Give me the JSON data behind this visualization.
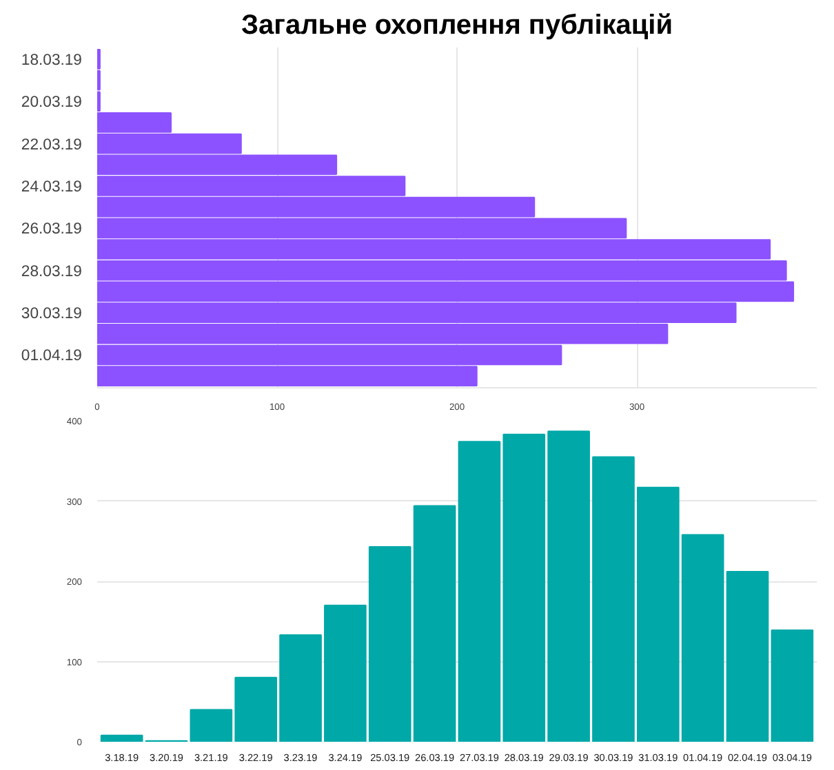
{
  "chart_data": [
    {
      "type": "bar",
      "title": "Загальне охоплення публікацій",
      "orientation": "horizontal",
      "color": "#8c52ff",
      "categories": [
        "18.03.19",
        null,
        "20.03.19",
        null,
        "22.03.19",
        null,
        "24.03.19",
        null,
        "26.03.19",
        null,
        "28.03.19",
        null,
        "30.03.19",
        null,
        "01.04.19",
        null
      ],
      "values": [
        1.5,
        1.5,
        1.5,
        41,
        80,
        133,
        171,
        243,
        294,
        374,
        383,
        387,
        355,
        317,
        258,
        211
      ],
      "xlim": [
        0,
        400
      ],
      "xticks": [
        0,
        100,
        200,
        300
      ],
      "grid": "x"
    },
    {
      "type": "bar",
      "color": "#00a8a8",
      "categories": [
        "3.18.19",
        "3.20.19",
        "3.21.19",
        "3.22.19",
        "3.23.19",
        "3.24.19",
        "25.03.19",
        "26.03.19",
        "27.03.19",
        "28.03.19",
        "29.03.19",
        "30.03.19",
        "31.03.19",
        "01.04.19",
        "02.04.19",
        "03.04.19"
      ],
      "values": [
        8,
        1,
        40,
        80,
        133,
        170,
        243,
        294,
        374,
        383,
        387,
        355,
        317,
        258,
        212,
        139
      ],
      "ylim": [
        0,
        400
      ],
      "yticks": [
        0,
        100,
        200,
        300,
        400
      ],
      "grid": "y"
    }
  ]
}
